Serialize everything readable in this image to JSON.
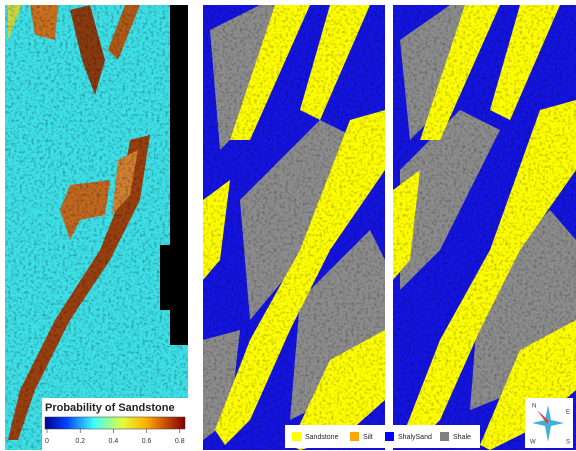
{
  "colorbar": {
    "title": "Probability of Sandstone",
    "ticks": [
      0,
      0.2,
      0.4,
      0.6,
      0.8
    ]
  },
  "legend": [
    {
      "name": "Sandstone",
      "color": "#ffff00"
    },
    {
      "name": "Silt",
      "color": "#ffa500"
    },
    {
      "name": "ShalySand",
      "color": "#0000ff"
    },
    {
      "name": "Shale",
      "color": "#808080"
    }
  ],
  "compass": {
    "north": "N",
    "east": "E",
    "south": "S",
    "west": "W"
  }
}
